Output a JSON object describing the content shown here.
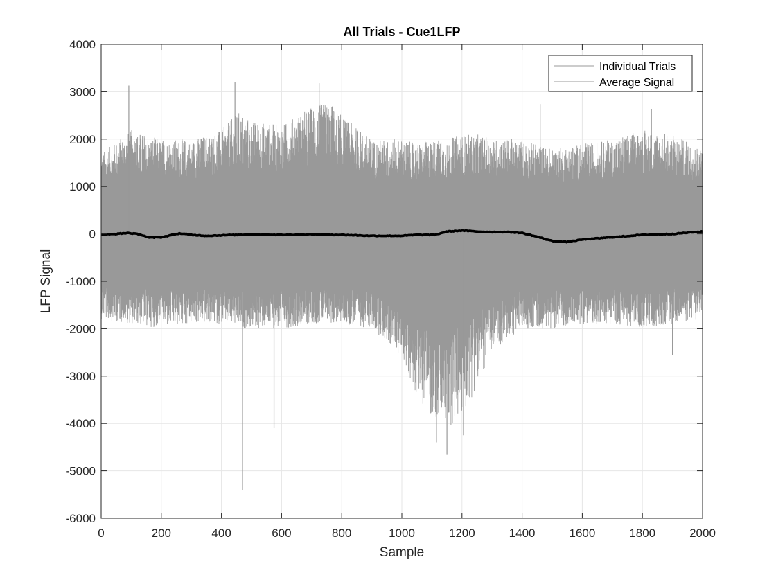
{
  "chart_data": {
    "type": "line",
    "title": "All Trials - Cue1LFP",
    "xlabel": "Sample",
    "ylabel": "LFP Signal",
    "xlim": [
      0,
      2000
    ],
    "ylim": [
      -6000,
      4000
    ],
    "xticks": [
      0,
      200,
      400,
      600,
      800,
      1000,
      1200,
      1400,
      1600,
      1800,
      2000
    ],
    "yticks": [
      -6000,
      -5000,
      -4000,
      -3000,
      -2000,
      -1000,
      0,
      1000,
      2000,
      3000,
      4000
    ],
    "grid": true,
    "legend_position": "top-right",
    "series": [
      {
        "name": "Individual Trials",
        "color": "#999999",
        "envelope": {
          "x": [
            0,
            100,
            200,
            300,
            400,
            460,
            500,
            600,
            700,
            760,
            800,
            900,
            1000,
            1050,
            1100,
            1150,
            1200,
            1250,
            1300,
            1400,
            1500,
            1600,
            1700,
            1800,
            1900,
            2000
          ],
          "upper": [
            1700,
            2200,
            2000,
            2000,
            2200,
            2600,
            2400,
            2300,
            2700,
            2800,
            2500,
            2000,
            2000,
            1900,
            2000,
            2000,
            2100,
            2100,
            2000,
            2000,
            1800,
            1900,
            2000,
            2200,
            2100,
            1800
          ],
          "lower": [
            -1800,
            -1900,
            -2000,
            -1900,
            -1900,
            -2000,
            -2000,
            -2000,
            -1900,
            -1900,
            -1900,
            -2000,
            -2600,
            -3400,
            -3900,
            -4100,
            -3900,
            -3200,
            -2500,
            -2000,
            -2000,
            -1900,
            -1900,
            -2000,
            -1900,
            -1800
          ]
        },
        "spikes": [
          {
            "x": 92,
            "y": 3130
          },
          {
            "x": 445,
            "y": 3200
          },
          {
            "x": 725,
            "y": 3180
          },
          {
            "x": 470,
            "y": -5400
          },
          {
            "x": 575,
            "y": -4100
          },
          {
            "x": 1150,
            "y": -4650
          },
          {
            "x": 1115,
            "y": -4400
          },
          {
            "x": 1205,
            "y": -4250
          },
          {
            "x": 1460,
            "y": 2740
          },
          {
            "x": 1830,
            "y": 2640
          },
          {
            "x": 1900,
            "y": -2550
          }
        ]
      },
      {
        "name": "Average Signal",
        "color": "#000000",
        "x": [
          0,
          50,
          90,
          130,
          160,
          200,
          230,
          260,
          300,
          350,
          400,
          500,
          600,
          700,
          800,
          900,
          1000,
          1050,
          1110,
          1150,
          1200,
          1250,
          1300,
          1350,
          1400,
          1450,
          1500,
          1550,
          1600,
          1700,
          1800,
          1900,
          2000
        ],
        "y": [
          -20,
          0,
          20,
          -10,
          -80,
          -70,
          -30,
          10,
          -20,
          -40,
          -30,
          -10,
          -20,
          -10,
          -20,
          -40,
          -40,
          -20,
          -20,
          50,
          70,
          50,
          40,
          40,
          20,
          -60,
          -150,
          -170,
          -120,
          -70,
          -20,
          0,
          50
        ]
      }
    ]
  }
}
